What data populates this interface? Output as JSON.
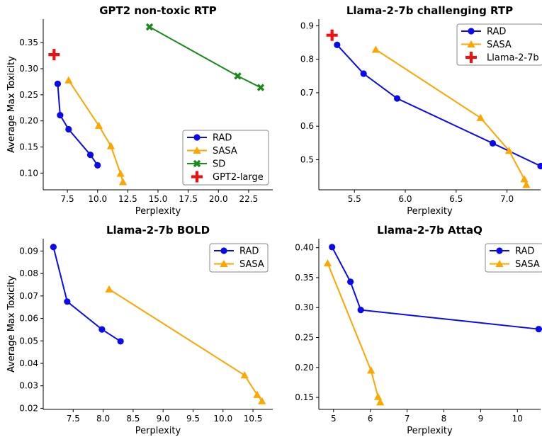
{
  "colors": {
    "RAD": "#0a0aee",
    "SASA": "#ffa500",
    "SD": "#1a8a1a",
    "baseline": "#ee1111"
  },
  "chart_data": [
    {
      "type": "line",
      "title": "GPT2 non-toxic RTP",
      "xlabel": "Perplexity",
      "ylabel": "Average Max Toxicity",
      "xlim": [
        5.5,
        24.5
      ],
      "ylim": [
        0.068,
        0.395
      ],
      "xticks": [
        "7.5",
        "10.0",
        "12.5",
        "15.0",
        "17.5",
        "20.0",
        "22.5"
      ],
      "yticks": [
        "0.10",
        "0.15",
        "0.20",
        "0.25",
        "0.30",
        "0.35"
      ],
      "legend": "lower-right",
      "series": [
        {
          "name": "RAD",
          "marker": "circle",
          "color": "#0a0aee",
          "x": [
            6.7,
            6.9,
            7.6,
            9.4,
            10.0
          ],
          "y": [
            0.271,
            0.211,
            0.184,
            0.135,
            0.115
          ]
        },
        {
          "name": "SASA",
          "marker": "triangle",
          "color": "#ffa500",
          "x": [
            7.6,
            10.1,
            11.1,
            11.9,
            12.1
          ],
          "y": [
            0.278,
            0.191,
            0.152,
            0.099,
            0.083
          ]
        },
        {
          "name": "SD",
          "marker": "x",
          "color": "#1a8a1a",
          "x": [
            14.3,
            21.6,
            23.5
          ],
          "y": [
            0.38,
            0.286,
            0.264
          ]
        },
        {
          "name": "GPT2-large",
          "marker": "plus",
          "color": "#ee1111",
          "x": [
            6.4
          ],
          "y": [
            0.327
          ]
        }
      ]
    },
    {
      "type": "line",
      "title": "Llama-2-7b challenging RTP",
      "xlabel": "Perplexity",
      "ylabel": "Average Max Toxicity",
      "xlim": [
        5.15,
        7.33
      ],
      "ylim": [
        0.41,
        0.92
      ],
      "xticks": [
        "5.5",
        "6.0",
        "6.5",
        "7.0"
      ],
      "yticks": [
        "0.5",
        "0.6",
        "0.7",
        "0.8",
        "0.9"
      ],
      "legend": "top-right",
      "series": [
        {
          "name": "RAD",
          "marker": "circle",
          "color": "#0a0aee",
          "x": [
            5.33,
            5.59,
            5.92,
            6.86,
            7.33
          ],
          "y": [
            0.843,
            0.757,
            0.683,
            0.549,
            0.481
          ]
        },
        {
          "name": "SASA",
          "marker": "triangle",
          "color": "#ffa500",
          "x": [
            5.71,
            6.74,
            7.02,
            7.17,
            7.19
          ],
          "y": [
            0.829,
            0.625,
            0.527,
            0.442,
            0.425
          ]
        },
        {
          "name": "Llama-2-7b",
          "marker": "plus",
          "color": "#ee1111",
          "x": [
            5.28
          ],
          "y": [
            0.872
          ]
        }
      ]
    },
    {
      "type": "line",
      "title": "Llama-2-7b BOLD",
      "xlabel": "Perplexity",
      "ylabel": "Average Max Toxicity",
      "xlim": [
        7.0,
        10.83
      ],
      "ylim": [
        0.0195,
        0.0955
      ],
      "xticks": [
        "7.5",
        "8.0",
        "8.5",
        "9.0",
        "9.5",
        "10.0",
        "10.5"
      ],
      "yticks": [
        "0.02",
        "0.03",
        "0.04",
        "0.05",
        "0.06",
        "0.07",
        "0.08",
        "0.09"
      ],
      "legend": "top-right",
      "series": [
        {
          "name": "RAD",
          "marker": "circle",
          "color": "#0a0aee",
          "x": [
            7.17,
            7.4,
            7.98,
            8.29
          ],
          "y": [
            0.0918,
            0.0675,
            0.0551,
            0.0498
          ]
        },
        {
          "name": "SASA",
          "marker": "triangle",
          "color": "#ffa500",
          "x": [
            8.1,
            10.36,
            10.57,
            10.65
          ],
          "y": [
            0.073,
            0.0347,
            0.026,
            0.0232
          ]
        }
      ]
    },
    {
      "type": "line",
      "title": "Llama-2-7b AttaQ",
      "xlabel": "Perplexity",
      "ylabel": "Average Max Toxicity",
      "xlim": [
        4.6,
        10.63
      ],
      "ylim": [
        0.13,
        0.415
      ],
      "xticks": [
        "5",
        "6",
        "7",
        "8",
        "9",
        "10"
      ],
      "yticks": [
        "0.15",
        "0.20",
        "0.25",
        "0.30",
        "0.35",
        "0.40"
      ],
      "legend": "top-right",
      "series": [
        {
          "name": "RAD",
          "marker": "circle",
          "color": "#0a0aee",
          "x": [
            4.96,
            5.46,
            5.74,
            10.58
          ],
          "y": [
            0.401,
            0.343,
            0.296,
            0.264
          ]
        },
        {
          "name": "SASA",
          "marker": "triangle",
          "color": "#ffa500",
          "x": [
            4.84,
            6.02,
            6.21,
            6.27
          ],
          "y": [
            0.374,
            0.195,
            0.151,
            0.142
          ]
        }
      ]
    }
  ]
}
